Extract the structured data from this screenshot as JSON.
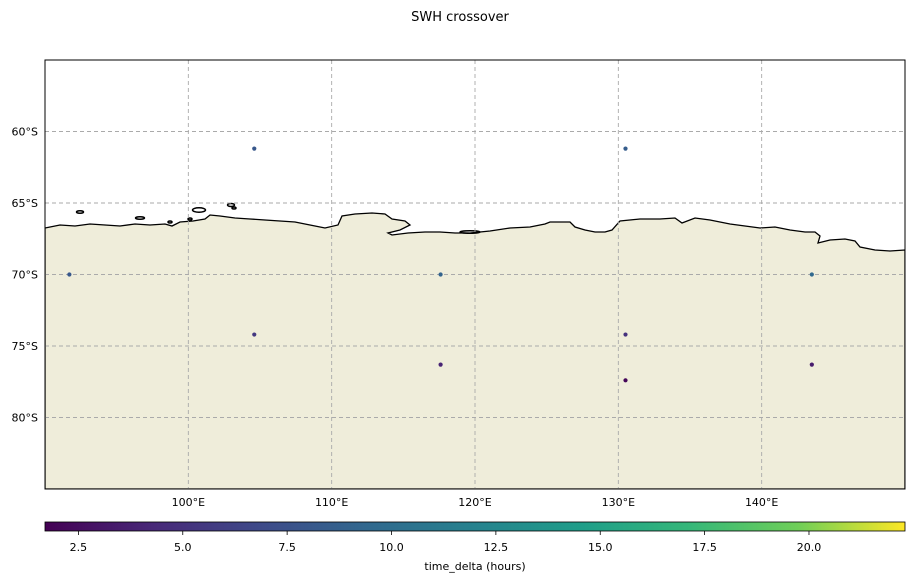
{
  "title": "SWH crossover",
  "map": {
    "lon_range": [
      90,
      150
    ],
    "lat_range": [
      -85,
      -55
    ],
    "lon_ticks": [
      {
        "value": 100,
        "label": "100°E"
      },
      {
        "value": 110,
        "label": "110°E"
      },
      {
        "value": 120,
        "label": "120°E"
      },
      {
        "value": 130,
        "label": "130°E"
      },
      {
        "value": 140,
        "label": "140°E"
      }
    ],
    "lat_ticks": [
      {
        "value": -60,
        "label": "60°S"
      },
      {
        "value": -65,
        "label": "65°S"
      },
      {
        "value": -70,
        "label": "70°S"
      },
      {
        "value": -75,
        "label": "75°S"
      },
      {
        "value": -80,
        "label": "80°S"
      }
    ],
    "gridlines": true,
    "land_color": "#efedda",
    "coastline_color": "#000000"
  },
  "crossovers": [
    {
      "lon": 104.6,
      "lat": -61.2,
      "time_delta": 8.0
    },
    {
      "lon": 130.5,
      "lat": -61.2,
      "time_delta": 8.5
    },
    {
      "lon": 91.7,
      "lat": -70.0,
      "time_delta": 8.0
    },
    {
      "lon": 117.6,
      "lat": -70.0,
      "time_delta": 9.0
    },
    {
      "lon": 143.5,
      "lat": -70.0,
      "time_delta": 9.5
    },
    {
      "lon": 104.6,
      "lat": -74.2,
      "time_delta": 5.5
    },
    {
      "lon": 130.5,
      "lat": -74.2,
      "time_delta": 5.0
    },
    {
      "lon": 117.6,
      "lat": -76.3,
      "time_delta": 4.0
    },
    {
      "lon": 143.5,
      "lat": -76.3,
      "time_delta": 3.5
    },
    {
      "lon": 130.5,
      "lat": -77.4,
      "time_delta": 2.0
    }
  ],
  "colorbar": {
    "label": "time_delta (hours)",
    "colormap": "viridis",
    "range": [
      1.7,
      22.3
    ],
    "ticks": [
      {
        "value": 2.5,
        "label": "2.5"
      },
      {
        "value": 5.0,
        "label": "5.0"
      },
      {
        "value": 7.5,
        "label": "7.5"
      },
      {
        "value": 10.0,
        "label": "10.0"
      },
      {
        "value": 12.5,
        "label": "12.5"
      },
      {
        "value": 15.0,
        "label": "15.0"
      },
      {
        "value": 17.5,
        "label": "17.5"
      },
      {
        "value": 20.0,
        "label": "20.0"
      }
    ]
  }
}
